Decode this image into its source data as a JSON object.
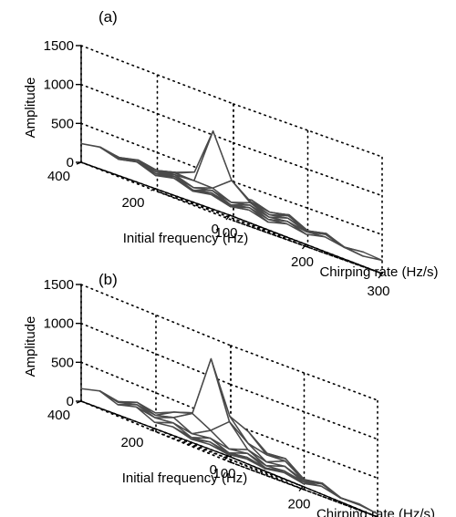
{
  "chart_data": [
    {
      "type": "surface",
      "panel_label": "(a)",
      "xlabel": "Chirping rate (Hz/s)",
      "ylabel": "Initial frequency (Hz)",
      "zlabel": "Amplitude",
      "xticks": [
        "100",
        "200",
        "300"
      ],
      "yticks": [
        "0",
        "200",
        "400"
      ],
      "zticks": [
        "0",
        "500",
        "1000",
        "1500"
      ],
      "xlim": [
        100,
        300
      ],
      "ylim": [
        0,
        400
      ],
      "zlim": [
        0,
        1500
      ],
      "grid": true,
      "x": [
        100,
        125,
        150,
        175,
        200,
        225,
        250,
        275,
        300
      ],
      "y": [
        0,
        50,
        100,
        150,
        200,
        250,
        300,
        350,
        400
      ],
      "z": [
        [
          120,
          160,
          100,
          170,
          130,
          190,
          150,
          130,
          170
        ],
        [
          180,
          120,
          200,
          140,
          210,
          170,
          230,
          160,
          190
        ],
        [
          140,
          210,
          150,
          240,
          180,
          260,
          190,
          250,
          160
        ],
        [
          220,
          160,
          250,
          190,
          280,
          220,
          300,
          200,
          260
        ],
        [
          170,
          250,
          200,
          290,
          480,
          300,
          260,
          320,
          210
        ],
        [
          260,
          200,
          280,
          300,
          1030,
          330,
          290,
          250,
          330
        ],
        [
          210,
          270,
          230,
          310,
          420,
          360,
          300,
          340,
          270
        ],
        [
          280,
          230,
          300,
          260,
          330,
          290,
          350,
          280,
          310
        ],
        [
          240,
          290,
          250,
          310,
          270,
          320,
          260,
          300,
          250
        ]
      ]
    },
    {
      "type": "surface",
      "panel_label": "(b)",
      "xlabel": "Chirping rate (Hz/s)",
      "ylabel": "Initial frequency (Hz)",
      "zlabel": "Amplitude",
      "xticks": [
        "100",
        "200",
        "300"
      ],
      "yticks": [
        "0",
        "200",
        "400"
      ],
      "zticks": [
        "0",
        "500",
        "1000",
        "1500"
      ],
      "xlim": [
        100,
        300
      ],
      "ylim": [
        0,
        400
      ],
      "zlim": [
        0,
        1500
      ],
      "grid": true,
      "x": [
        100,
        125,
        150,
        175,
        200,
        225,
        250,
        275,
        300
      ],
      "y": [
        0,
        50,
        100,
        150,
        200,
        250,
        300,
        350,
        400
      ],
      "z": [
        [
          20,
          60,
          30,
          80,
          40,
          100,
          50,
          60,
          40
        ],
        [
          60,
          30,
          90,
          50,
          110,
          70,
          140,
          60,
          80
        ],
        [
          40,
          100,
          60,
          150,
          90,
          180,
          100,
          150,
          70
        ],
        [
          110,
          70,
          160,
          120,
          210,
          150,
          260,
          120,
          170
        ],
        [
          80,
          170,
          130,
          270,
          480,
          300,
          250,
          300,
          130
        ],
        [
          190,
          150,
          250,
          400,
          1200,
          560,
          460,
          280,
          250
        ],
        [
          130,
          230,
          190,
          330,
          420,
          380,
          330,
          260,
          200
        ],
        [
          220,
          170,
          270,
          230,
          320,
          260,
          280,
          220,
          240
        ],
        [
          160,
          230,
          190,
          250,
          210,
          260,
          200,
          230,
          180
        ]
      ]
    }
  ]
}
